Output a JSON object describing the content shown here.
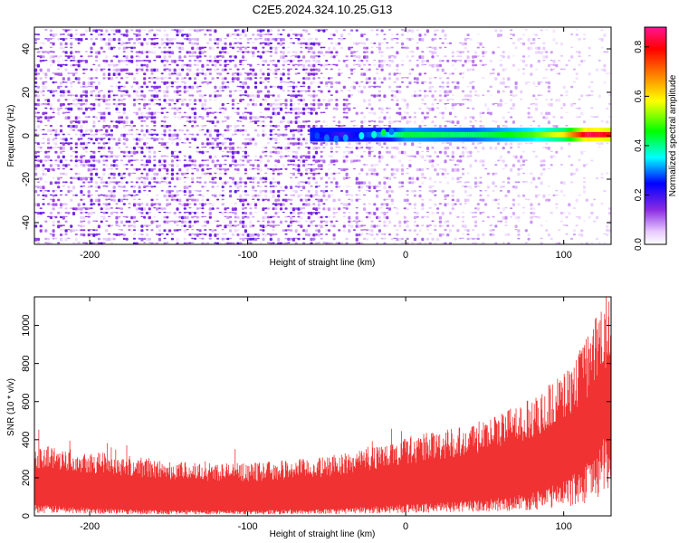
{
  "title": "C2E5.2024.324.10.25.G13",
  "chart_data": [
    {
      "type": "heatmap",
      "xlabel": "Height of straight line (km)",
      "ylabel": "Frequency (Hz)",
      "xlim": [
        -235,
        130
      ],
      "ylim": [
        -50,
        50
      ],
      "xticks": [
        -200,
        -100,
        0,
        100
      ],
      "yticks": [
        -40,
        -20,
        0,
        20,
        40
      ],
      "colorbar": {
        "label": "Normalized spectral amplitude",
        "ticks": [
          0.0,
          0.2,
          0.4,
          0.6,
          0.8
        ],
        "range": [
          0,
          0.88
        ],
        "colormap": [
          "#ffffff",
          "#8a2be2",
          "#0000ff",
          "#00ffff",
          "#00ff00",
          "#ffff00",
          "#ff8000",
          "#ff0000",
          "#ff1493"
        ]
      },
      "signal_band": {
        "frequency_hz": 0.5,
        "start_km": -60,
        "end_km": 130,
        "samples": [
          {
            "km": -55,
            "amp": 0.25
          },
          {
            "km": -40,
            "amp": 0.2
          },
          {
            "km": -20,
            "amp": 0.3
          },
          {
            "km": -12,
            "amp": 0.35
          },
          {
            "km": 0,
            "amp": 0.45
          },
          {
            "km": 40,
            "amp": 0.42
          },
          {
            "km": 80,
            "amp": 0.5
          },
          {
            "km": 100,
            "amp": 0.6
          },
          {
            "km": 115,
            "amp": 0.85
          },
          {
            "km": 130,
            "amp": 0.8
          }
        ]
      },
      "noise": {
        "dense_until_km": -50,
        "fade_to_km": 130,
        "amp_range": [
          0.0,
          0.2
        ]
      }
    },
    {
      "type": "area",
      "xlabel": "Height of straight line (km)",
      "ylabel": "SNR (10 * v/v)",
      "xlim": [
        -235,
        130
      ],
      "ylim": [
        0,
        1150
      ],
      "xticks": [
        -200,
        -100,
        0,
        100
      ],
      "yticks": [
        0,
        200,
        400,
        600,
        800,
        1000
      ],
      "color": "#f03232",
      "envelope": [
        {
          "km": -235,
          "low": 50,
          "high": 330
        },
        {
          "km": -200,
          "low": 35,
          "high": 300
        },
        {
          "km": -150,
          "low": 25,
          "high": 250
        },
        {
          "km": -100,
          "low": 25,
          "high": 240
        },
        {
          "km": -50,
          "low": 30,
          "high": 270
        },
        {
          "km": 0,
          "low": 50,
          "high": 360
        },
        {
          "km": 50,
          "low": 70,
          "high": 440
        },
        {
          "km": 80,
          "low": 100,
          "high": 540
        },
        {
          "km": 100,
          "low": 150,
          "high": 660
        },
        {
          "km": 115,
          "low": 230,
          "high": 820
        },
        {
          "km": 130,
          "low": 400,
          "high": 1080
        }
      ]
    }
  ]
}
